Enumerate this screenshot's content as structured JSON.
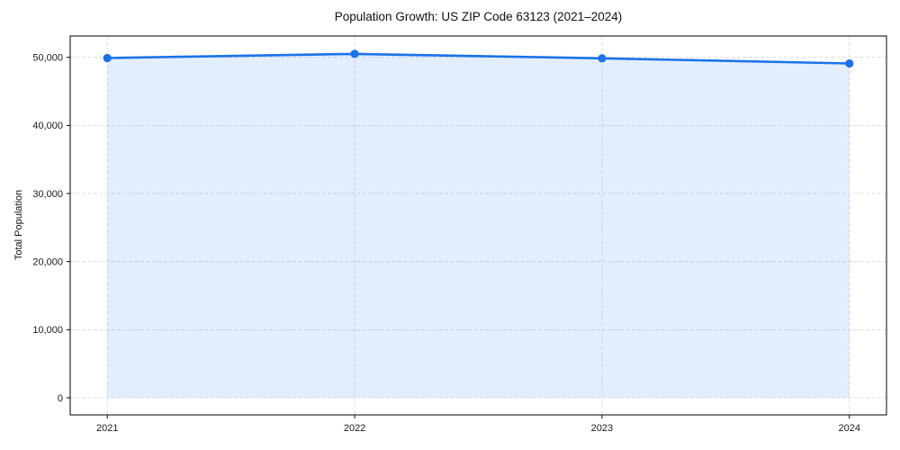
{
  "figure": {
    "background_color": "#ffffff"
  },
  "chart_data": {
    "type": "area",
    "title": "Population Growth: US ZIP Code 63123 (2021–2024)",
    "xlabel": "",
    "ylabel": "Total Population",
    "x": [
      2021,
      2022,
      2023,
      2024
    ],
    "categories": [
      "2021",
      "2022",
      "2023",
      "2024"
    ],
    "series": [
      {
        "name": "Total Population",
        "values": [
          49900,
          50500,
          49850,
          49100
        ]
      }
    ],
    "xticks": [
      2021,
      2022,
      2023,
      2024
    ],
    "xtick_labels": [
      "2021",
      "2022",
      "2023",
      "2024"
    ],
    "yticks": [
      0,
      10000,
      20000,
      30000,
      40000,
      50000
    ],
    "ytick_labels": [
      "0",
      "10,000",
      "20,000",
      "30,000",
      "40,000",
      "50,000"
    ],
    "xlim": [
      2020.85,
      2024.15
    ],
    "ylim": [
      -2510,
      53130
    ],
    "grid": true,
    "grid_line_style": "dashed",
    "legend_position": "none",
    "line_color": "#1a73e8",
    "marker_color": "#1a73e8",
    "fill_color": "rgba(26,115,232,0.12)",
    "grid_color": "#c9c9c9",
    "spine_color": "#000000",
    "marker": "circle"
  }
}
